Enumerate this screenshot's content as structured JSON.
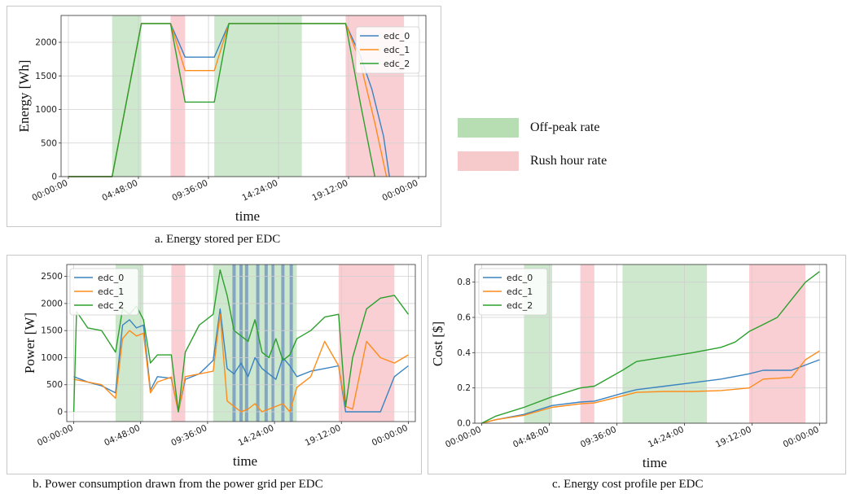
{
  "colors": {
    "edc_0": "#3a83c1",
    "edc_1": "#ff8c1a",
    "edc_2": "#2ca02c",
    "offpeak": "#7cc27c",
    "rush": "#f4a0a8",
    "highlight": "#4a6fb8"
  },
  "legend": {
    "offpeak_label": "Off-peak rate",
    "rush_label": "Rush hour rate"
  },
  "captions": {
    "a": "a. Energy stored per EDC",
    "b": "b. Power consumption drawn from the power grid per EDC",
    "c": "c. Energy cost profile per EDC"
  },
  "chart_data": [
    {
      "id": "a",
      "type": "line",
      "xlabel": "time",
      "ylabel": "Energy [Wh]",
      "x_ticks": [
        "00:00:00",
        "04:48:00",
        "09:36:00",
        "14:24:00",
        "19:12:00",
        "00:00:00"
      ],
      "x_unit": "hours",
      "xlim": [
        -0.5,
        24.5
      ],
      "ylim": [
        0,
        2400
      ],
      "y_ticks": [
        0,
        500,
        1000,
        1500,
        2000
      ],
      "grid": true,
      "legend_position": "top-right",
      "offpeak_bands": [
        [
          3,
          5
        ],
        [
          10,
          16
        ]
      ],
      "rush_bands": [
        [
          7,
          8
        ],
        [
          19,
          23
        ]
      ],
      "series": [
        {
          "name": "edc_0",
          "x": [
            0,
            3,
            5,
            7,
            8,
            10,
            11,
            19,
            20,
            20.8,
            21.6,
            22
          ],
          "y": [
            0,
            0,
            2280,
            2280,
            1780,
            1780,
            2280,
            2280,
            1800,
            1300,
            600,
            0
          ]
        },
        {
          "name": "edc_1",
          "x": [
            0,
            3,
            5,
            7,
            8,
            10,
            11,
            19,
            20,
            21,
            21.8
          ],
          "y": [
            0,
            0,
            2280,
            2280,
            1580,
            1580,
            2280,
            2280,
            1700,
            800,
            0
          ]
        },
        {
          "name": "edc_2",
          "x": [
            0,
            3,
            5,
            7,
            8,
            10,
            11,
            19,
            20,
            21
          ],
          "y": [
            0,
            0,
            2280,
            2280,
            1110,
            1110,
            2280,
            2280,
            1100,
            0
          ]
        }
      ]
    },
    {
      "id": "b",
      "type": "line",
      "xlabel": "time",
      "ylabel": "Power [W]",
      "x_ticks": [
        "00:00:00",
        "04:48:00",
        "09:36:00",
        "14:24:00",
        "19:12:00",
        "00:00:00"
      ],
      "x_unit": "hours",
      "xlim": [
        -0.5,
        24.5
      ],
      "ylim": [
        -180,
        2720
      ],
      "y_ticks": [
        0,
        500,
        1000,
        1500,
        2000,
        2500
      ],
      "grid": true,
      "legend_position": "top-left",
      "offpeak_bands": [
        [
          3,
          5
        ],
        [
          10,
          16
        ]
      ],
      "rush_bands": [
        [
          7,
          8
        ],
        [
          19,
          23
        ]
      ],
      "highlight_lines": [
        11.5,
        12,
        12.4,
        13.2,
        13.8,
        14.3,
        15,
        15.6
      ],
      "series": [
        {
          "name": "edc_0",
          "x": [
            0,
            1,
            2,
            3,
            3.5,
            4,
            4.5,
            5,
            5.5,
            6,
            7,
            7.5,
            8,
            9,
            10,
            10.5,
            11,
            11.5,
            12,
            12.5,
            13,
            13.5,
            14,
            14.5,
            15,
            15.5,
            16,
            17,
            18,
            19,
            19.5,
            20,
            21,
            22,
            23,
            24
          ],
          "y": [
            650,
            550,
            480,
            350,
            1600,
            1700,
            1550,
            1600,
            400,
            650,
            620,
            0,
            600,
            700,
            950,
            1900,
            800,
            700,
            900,
            650,
            1000,
            800,
            700,
            600,
            1000,
            850,
            650,
            750,
            800,
            850,
            0,
            0,
            0,
            0,
            650,
            850
          ]
        },
        {
          "name": "edc_1",
          "x": [
            0,
            1,
            2,
            3,
            3.5,
            4,
            4.5,
            5,
            5.5,
            6,
            7,
            7.5,
            8,
            9,
            10,
            10.5,
            11,
            11.5,
            12,
            12.5,
            13,
            13.5,
            14,
            14.5,
            15,
            15.5,
            16,
            17,
            18,
            19,
            19.5,
            20,
            21,
            22,
            23,
            24
          ],
          "y": [
            600,
            550,
            500,
            250,
            1350,
            1500,
            1400,
            1450,
            350,
            550,
            640,
            0,
            650,
            700,
            750,
            1800,
            200,
            100,
            0,
            50,
            150,
            0,
            50,
            100,
            150,
            0,
            450,
            650,
            1300,
            850,
            100,
            50,
            1300,
            1000,
            900,
            1050
          ]
        },
        {
          "name": "edc_2",
          "x": [
            0,
            0.2,
            1,
            2,
            3,
            3.5,
            4,
            4.5,
            5,
            5.5,
            6,
            7,
            7.5,
            8,
            9,
            10,
            10.5,
            11,
            11.5,
            12,
            12.5,
            13,
            13.5,
            14,
            14.5,
            15,
            15.5,
            16,
            17,
            18,
            19,
            19.5,
            20,
            21,
            22,
            23,
            24
          ],
          "y": [
            0,
            1850,
            1550,
            1500,
            1100,
            1900,
            1800,
            1950,
            1700,
            900,
            1050,
            1050,
            0,
            1100,
            1600,
            1800,
            2620,
            2150,
            1500,
            1400,
            1300,
            1700,
            1100,
            1000,
            1350,
            950,
            1050,
            1350,
            1500,
            1750,
            1800,
            100,
            1000,
            1900,
            2100,
            2150,
            1800
          ]
        }
      ]
    },
    {
      "id": "c",
      "type": "line",
      "xlabel": "time",
      "ylabel": "Cost [$]",
      "x_ticks": [
        "00:00:00",
        "04:48:00",
        "09:36:00",
        "14:24:00",
        "19:12:00",
        "00:00:00"
      ],
      "x_unit": "hours",
      "xlim": [
        -0.5,
        24.5
      ],
      "ylim": [
        0,
        0.9
      ],
      "y_ticks": [
        0.0,
        0.2,
        0.4,
        0.6,
        0.8
      ],
      "grid": true,
      "legend_position": "top-left",
      "offpeak_bands": [
        [
          3,
          5
        ],
        [
          10,
          16
        ]
      ],
      "rush_bands": [
        [
          7,
          8
        ],
        [
          19,
          23
        ]
      ],
      "series": [
        {
          "name": "edc_0",
          "x": [
            0,
            1,
            3,
            5,
            7,
            8,
            10,
            11,
            13,
            15,
            17,
            19,
            20,
            21,
            22,
            23,
            24
          ],
          "y": [
            0,
            0.02,
            0.05,
            0.1,
            0.12,
            0.125,
            0.17,
            0.19,
            0.21,
            0.23,
            0.25,
            0.28,
            0.3,
            0.3,
            0.3,
            0.33,
            0.36
          ]
        },
        {
          "name": "edc_1",
          "x": [
            0,
            1,
            3,
            5,
            7,
            8,
            10,
            11,
            13,
            15,
            17,
            19,
            20,
            21,
            22,
            23,
            24
          ],
          "y": [
            0,
            0.02,
            0.045,
            0.09,
            0.11,
            0.115,
            0.155,
            0.175,
            0.18,
            0.18,
            0.185,
            0.2,
            0.25,
            0.255,
            0.26,
            0.36,
            0.41
          ]
        },
        {
          "name": "edc_2",
          "x": [
            0,
            1,
            3,
            5,
            7,
            8,
            10,
            11,
            13,
            15,
            17,
            18,
            19,
            20,
            21,
            22,
            23,
            24
          ],
          "y": [
            0,
            0.04,
            0.09,
            0.15,
            0.2,
            0.21,
            0.3,
            0.35,
            0.375,
            0.4,
            0.43,
            0.46,
            0.52,
            0.56,
            0.6,
            0.7,
            0.8,
            0.86
          ]
        }
      ]
    }
  ]
}
